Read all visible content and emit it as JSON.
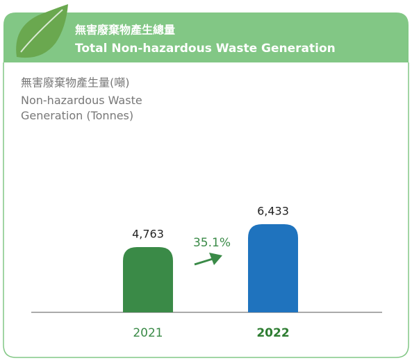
{
  "chart_data": {
    "type": "bar",
    "title": "無害廢棄物產生總量",
    "subtitle": "Total Non-hazardous Waste Generation",
    "ylabel_zh": "無害廢棄物產生量(噸)",
    "ylabel": "Non-hazardous Waste Generation (Tonnes)",
    "categories": [
      "2021",
      "2022"
    ],
    "values": [
      4763,
      6433
    ],
    "value_labels": [
      "4,763",
      "6,433"
    ],
    "colors": [
      "#3a8a47",
      "#1f73be"
    ],
    "annotation": "35.1%"
  }
}
